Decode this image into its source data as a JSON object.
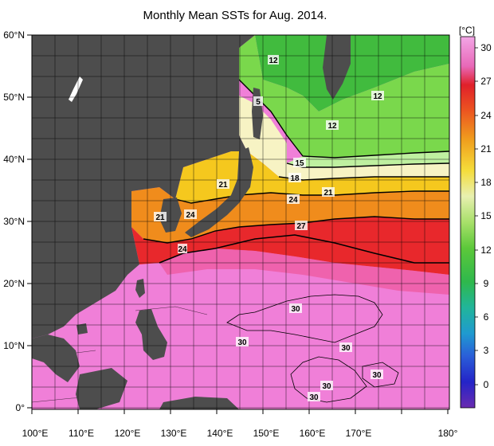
{
  "title": "Monthly Mean SSTs for Aug. 2014.",
  "colorbar": {
    "unit": "[°C]",
    "ticks": [
      "0",
      "3",
      "6",
      "9",
      "12",
      "15",
      "18",
      "21",
      "24",
      "27",
      "30"
    ]
  },
  "axes": {
    "lat_labels": [
      "60°N",
      "50°N",
      "40°N",
      "30°N",
      "20°N",
      "10°N",
      "0°"
    ],
    "lon_labels": [
      "100°E",
      "110°E",
      "120°E",
      "130°E",
      "140°E",
      "150°E",
      "160°E",
      "170°E",
      "180°"
    ]
  },
  "contour_labels": [
    "12",
    "5",
    "12",
    "12",
    "15",
    "18",
    "21",
    "21",
    "24",
    "24",
    "21",
    "27",
    "24",
    "30",
    "30",
    "30",
    "30",
    "30",
    "30",
    "30"
  ],
  "colors": {
    "land": "#4d4d4d",
    "sst_30": "#f07fd8",
    "sst_27": "#e8282c",
    "sst_24": "#f08c1c",
    "sst_21": "#f5c81e",
    "sst_18": "#f7f3c4",
    "sst_15": "#bff0a0",
    "sst_12": "#7ad84c",
    "sst_9": "#41bb3e"
  }
}
